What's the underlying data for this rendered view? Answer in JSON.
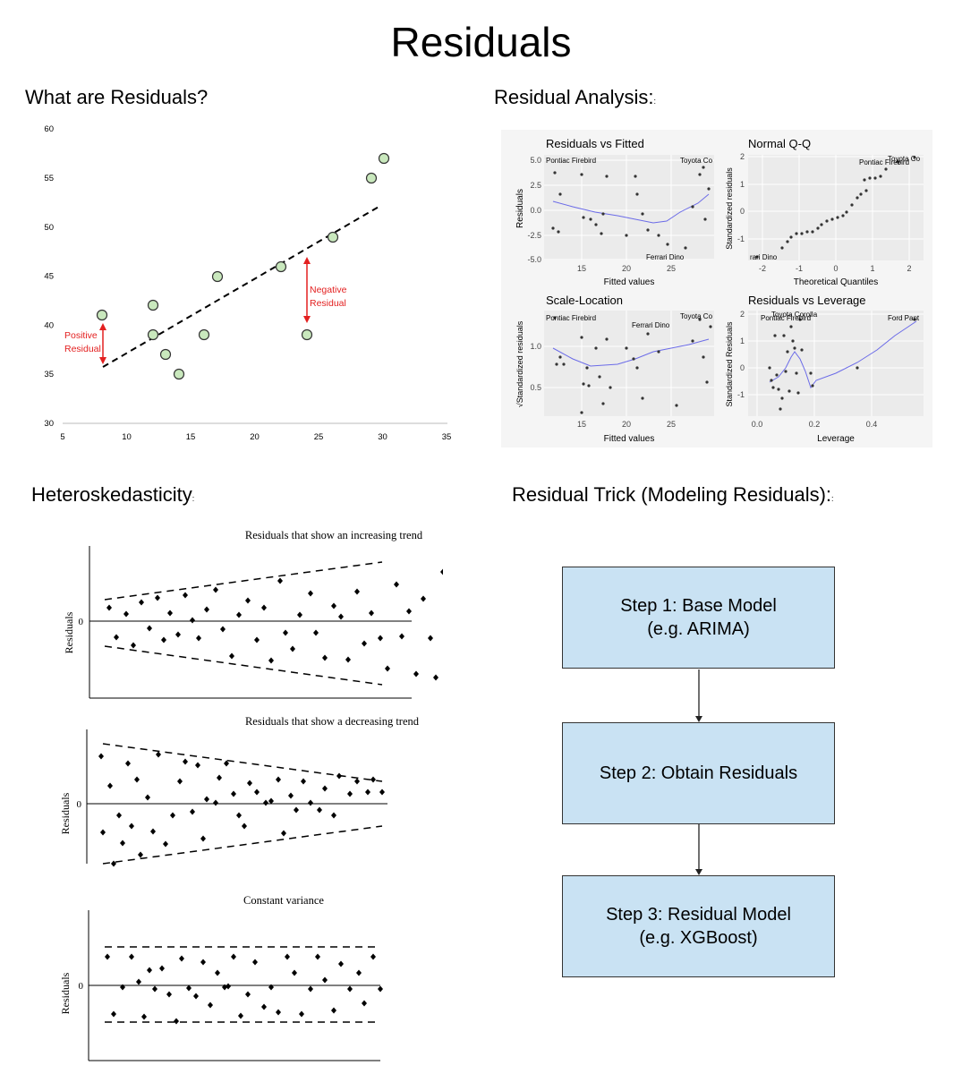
{
  "title": "Residuals",
  "sections": {
    "what": "What are Residuals?",
    "analysis": "Residual Analysis:",
    "analysis_mark": ":",
    "hetero": "Heteroskedasticity",
    "hetero_mark": ":",
    "trick": "Residual Trick (Modeling Residuals):",
    "trick_mark": ":"
  },
  "scatter": {
    "x_ticks": [
      "5",
      "10",
      "15",
      "20",
      "25",
      "30",
      "35"
    ],
    "y_ticks": [
      "30",
      "35",
      "40",
      "45",
      "50",
      "55",
      "60"
    ],
    "annotation_positive": [
      "Positive",
      "Residual"
    ],
    "annotation_negative": [
      "Negative",
      "Residual"
    ],
    "annotation_color": "#e32020",
    "point_fill": "#c9e8bd"
  },
  "diagnostics": {
    "rvf": {
      "title": "Residuals vs Fitted",
      "xlabel": "Fitted values",
      "ylabel": "Residuals",
      "x_ticks": [
        "15",
        "20",
        "25"
      ],
      "y_ticks": [
        "5.0",
        "2.5",
        "0.0",
        "-2.5",
        "-5.0"
      ],
      "labels": [
        "Pontiac Firebird",
        "Toyota Co",
        "Ferrari Dino"
      ]
    },
    "qq": {
      "title": "Normal Q-Q",
      "xlabel": "Theoretical Quantiles",
      "ylabel": "Standardized residuals",
      "x_ticks": [
        "-2",
        "-1",
        "0",
        "1",
        "2"
      ],
      "y_ticks": [
        "2",
        "1",
        "0",
        "-1"
      ],
      "labels": [
        "Pontiac Firebird",
        "Toyota Co",
        "rari Dino"
      ]
    },
    "sl": {
      "title": "Scale-Location",
      "xlabel": "Fitted values",
      "ylabel": "√Standardized residuals",
      "x_ticks": [
        "15",
        "20",
        "25"
      ],
      "y_ticks": [
        "1.0",
        "0.5"
      ],
      "labels": [
        "Pontiac Firebird",
        "Toyota Co",
        "Ferrari Dino"
      ]
    },
    "rvl": {
      "title": "Residuals vs Leverage",
      "xlabel": "Leverage",
      "ylabel": "Standardized Residuals",
      "x_ticks": [
        "0.0",
        "0.2",
        "0.4"
      ],
      "y_ticks": [
        "2",
        "1",
        "0",
        "-1"
      ],
      "labels": [
        "Pontiac Firebird",
        "Toyota Corolla",
        "Ford Pant"
      ]
    }
  },
  "hetero_panels": [
    {
      "title": "Residuals that show an increasing trend",
      "ylabel": "Residuals",
      "zero": "0"
    },
    {
      "title": "Residuals that show a decreasing trend",
      "ylabel": "Residuals",
      "zero": "0"
    },
    {
      "title": "Constant variance",
      "ylabel": "Residuals",
      "zero": "0"
    }
  ],
  "flowchart": {
    "steps": [
      {
        "line1": "Step 1: Base Model",
        "line2": "(e.g. ARIMA)"
      },
      {
        "line1": "Step 2: Obtain Residuals",
        "line2": ""
      },
      {
        "line1": "Step 3: Residual Model",
        "line2": "(e.g. XGBoost)"
      }
    ]
  }
}
